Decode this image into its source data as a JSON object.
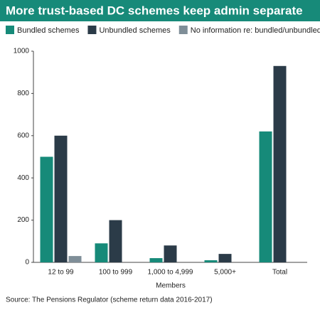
{
  "chart_data": {
    "type": "bar",
    "title": "More trust-based DC schemes keep admin separate",
    "x_label": "Members",
    "source": "Source: The Pensions Regulator (scheme return data 2016-2017)",
    "categories": [
      "12 to 99",
      "100 to 999",
      "1,000 to 4,999",
      "5,000+",
      "Total"
    ],
    "series": [
      {
        "name": "Bundled schemes",
        "color": "#168a79",
        "values": [
          500,
          90,
          20,
          10,
          620
        ]
      },
      {
        "name": "Unbundled schemes",
        "color": "#2b3b48",
        "values": [
          600,
          200,
          80,
          40,
          930
        ]
      },
      {
        "name": "No information re: bundled/unbundled",
        "color": "#7f8e98",
        "values": [
          30,
          null,
          null,
          null,
          null
        ]
      }
    ],
    "ylim": [
      0,
      1000
    ],
    "yticks": [
      0,
      200,
      400,
      600,
      800,
      1000
    ]
  }
}
